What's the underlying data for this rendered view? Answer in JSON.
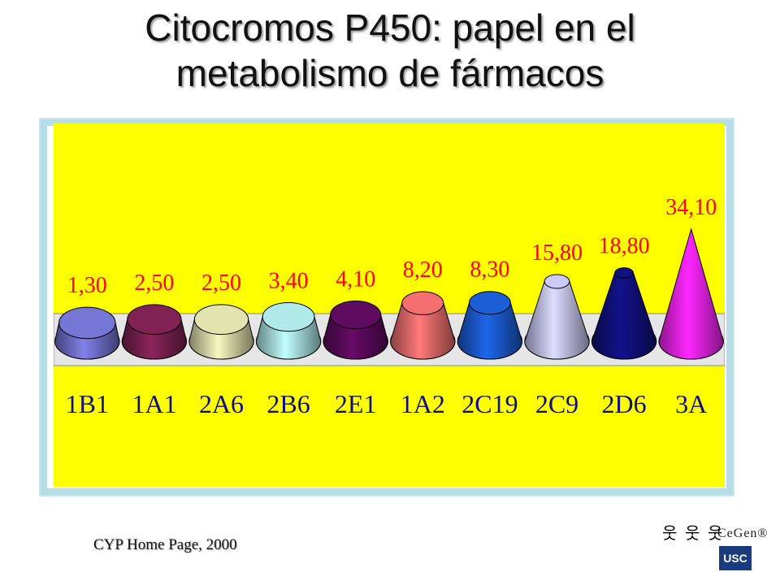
{
  "title": {
    "line1": "Citocromos P450: papel en el",
    "line2": "metabolismo de fármacos"
  },
  "source": "CYP Home Page, 2000",
  "logo": {
    "brand": "CeGen®",
    "usc": "USC",
    "figures": "웃 웃 웃"
  },
  "chart_data": {
    "type": "bar",
    "categories": [
      "1B1",
      "1A1",
      "2A6",
      "2B6",
      "2E1",
      "1A2",
      "2C19",
      "2C9",
      "2D6",
      "3A"
    ],
    "values": [
      1.3,
      2.5,
      2.5,
      3.4,
      4.1,
      8.2,
      8.3,
      15.8,
      18.8,
      34.1
    ],
    "value_labels": [
      "1,30",
      "2,50",
      "2,50",
      "3,40",
      "4,10",
      "8,20",
      "8,30",
      "15,80",
      "18,80",
      "34,10"
    ],
    "colors": [
      "#7070cc",
      "#7a2050",
      "#d8d8a8",
      "#a8dede",
      "#5a0a5a",
      "#e86a6a",
      "#1a5acc",
      "#c0c0f0",
      "#10107a",
      "#ee22ee"
    ],
    "background": "#ffff00",
    "label_color": "#ff0000",
    "shape": "3d cone",
    "grid": false
  }
}
